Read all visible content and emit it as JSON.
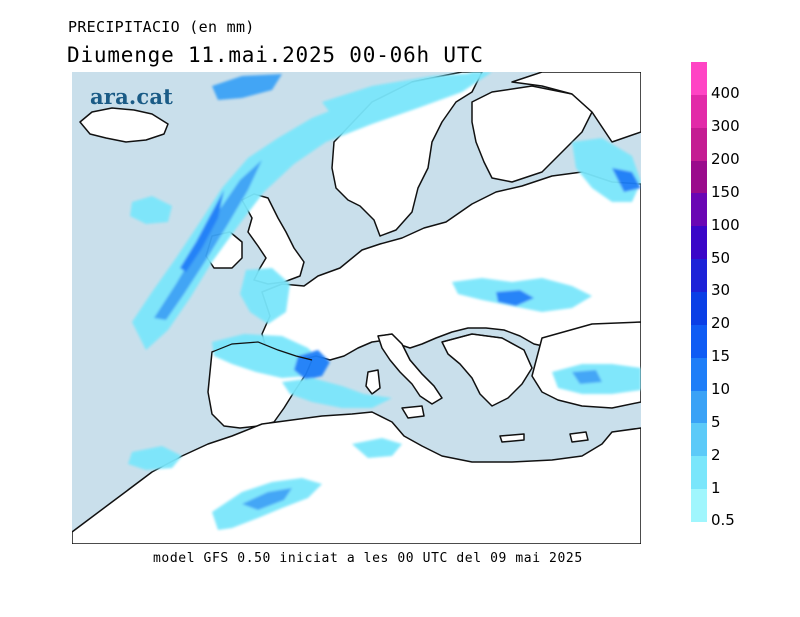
{
  "header": {
    "title": "PRECIPITACIO (en mm)",
    "subtitle": "Diumenge  11.mai.2025 00-06h UTC"
  },
  "footer": {
    "model_note": "model GFS 0.50 iniciat a les 00 UTC del 09 mai 2025"
  },
  "brand": {
    "logo_text": "ara.cat"
  },
  "map": {
    "region": "Europe",
    "sea_color": "#c9dfeb",
    "land_color": "#ffffff",
    "coast_color": "#111111"
  },
  "legend": {
    "ticks": [
      {
        "label": "400",
        "color": "#ff44c4"
      },
      {
        "label": "300",
        "color": "#e22aa8"
      },
      {
        "label": "200",
        "color": "#c41c92"
      },
      {
        "label": "150",
        "color": "#9a0b8c"
      },
      {
        "label": "100",
        "color": "#6a06b4"
      },
      {
        "label": "50",
        "color": "#3a06c8"
      },
      {
        "label": "30",
        "color": "#1d22d8"
      },
      {
        "label": "20",
        "color": "#0a3fe6"
      },
      {
        "label": "15",
        "color": "#0f5cf4"
      },
      {
        "label": "10",
        "color": "#1e7ef8"
      },
      {
        "label": "5",
        "color": "#3aa2f6"
      },
      {
        "label": "2",
        "color": "#5ccaf8"
      },
      {
        "label": "1",
        "color": "#7ae6fb"
      },
      {
        "label": "0.5",
        "color": "#a0f6fd"
      }
    ]
  }
}
